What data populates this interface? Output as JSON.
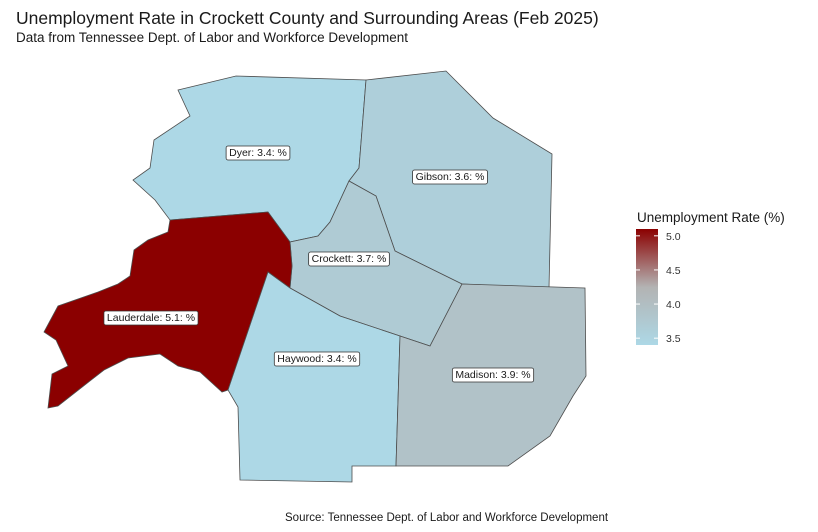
{
  "title": "Unemployment Rate in Crockett County and Surrounding Areas (Feb 2025)",
  "subtitle": "Data from Tennessee Dept. of Labor and Workforce Development",
  "caption": "Source: Tennessee Dept. of Labor and Workforce Development",
  "legend": {
    "title": "Unemployment Rate (%)",
    "ticks": [
      "5.0",
      "4.5",
      "4.0",
      "3.5"
    ],
    "tick_values": [
      5.0,
      4.5,
      4.0,
      3.5
    ],
    "min": 3.4,
    "max": 5.1,
    "low_color": "#add8e6",
    "high_color": "#8b0000"
  },
  "counties": [
    {
      "name": "Dyer",
      "value": 3.4,
      "label": "Dyer: 3.4: %"
    },
    {
      "name": "Gibson",
      "value": 3.6,
      "label": "Gibson: 3.6: %"
    },
    {
      "name": "Crockett",
      "value": 3.7,
      "label": "Crockett: 3.7: %"
    },
    {
      "name": "Lauderdale",
      "value": 5.1,
      "label": "Lauderdale: 5.1: %"
    },
    {
      "name": "Haywood",
      "value": 3.4,
      "label": "Haywood: 3.4: %"
    },
    {
      "name": "Madison",
      "value": 3.9,
      "label": "Madison: 3.9: %"
    }
  ]
}
